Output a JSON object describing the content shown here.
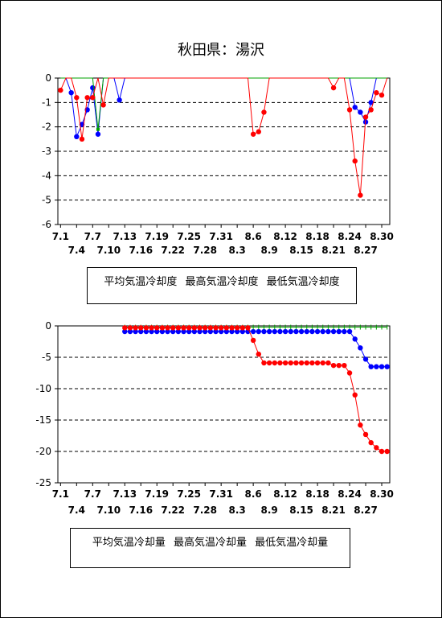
{
  "title": "秋田県：湯沢",
  "colors": {
    "mean": "#0000ff",
    "max": "#00a000",
    "min": "#ff0000"
  },
  "chart_data": [
    {
      "type": "line",
      "title": "",
      "ylim": [
        -6,
        0
      ],
      "yticks": [
        "0",
        "-1",
        "-2",
        "-3",
        "-4",
        "-5",
        "-6"
      ],
      "xticks_upper": [
        "7.1",
        "7.7",
        "7.13",
        "7.19",
        "7.25",
        "7.31",
        "8.6",
        "8.12",
        "8.18",
        "8.24",
        "8.30"
      ],
      "xticks_lower": [
        "7.4",
        "7.10",
        "7.16",
        "7.22",
        "7.28",
        "8.3",
        "8.9",
        "8.15",
        "8.21",
        "8.27"
      ],
      "grid": "dashed-horizontal",
      "legend": [
        "平均気温冷却度",
        "最高気温冷却度",
        "最低気温冷却度"
      ],
      "series": [
        {
          "name": "平均気温冷却度",
          "color": "#0000ff",
          "values": [
            0,
            0,
            -0.6,
            -2.4,
            -1.9,
            -1.3,
            -0.4,
            -2.3,
            0,
            0,
            0,
            -0.9,
            0,
            0,
            0,
            0,
            0,
            0,
            0,
            0,
            0,
            0,
            0,
            0,
            0,
            0,
            0,
            0,
            0,
            0,
            0,
            0,
            0,
            0,
            0,
            0,
            0,
            0,
            0,
            0,
            0,
            0,
            0,
            0,
            0,
            0,
            0,
            0,
            0,
            0,
            0,
            0,
            0,
            0,
            0,
            -1.2,
            -1.4,
            -1.8,
            -1.0,
            0,
            0,
            0
          ]
        },
        {
          "name": "最高気温冷却度",
          "color": "#00a000",
          "values": [
            0,
            0,
            0,
            0,
            0,
            0,
            0,
            -2.1,
            0,
            0,
            0,
            0,
            0,
            0,
            0,
            0,
            0,
            0,
            0,
            0,
            0,
            0,
            0,
            0,
            0,
            0,
            0,
            0,
            0,
            0,
            0,
            0,
            0,
            0,
            0,
            0,
            0,
            0,
            0,
            0,
            0,
            0,
            0,
            0,
            0,
            0,
            0,
            0,
            0,
            0,
            0,
            0,
            0,
            0,
            0,
            0,
            0,
            0,
            0,
            0,
            0,
            0
          ]
        },
        {
          "name": "最低気温冷却度",
          "color": "#ff0000",
          "values": [
            -0.5,
            0,
            0,
            -0.8,
            -2.5,
            -0.8,
            -0.8,
            0,
            -1.1,
            0,
            0,
            0,
            0,
            0,
            0,
            0,
            0,
            0,
            0,
            0,
            0,
            0,
            0,
            0,
            0,
            0,
            0,
            0,
            0,
            0,
            0,
            0,
            0,
            0,
            0,
            0,
            -2.3,
            -2.2,
            -1.4,
            0,
            0,
            0,
            0,
            0,
            0,
            0,
            0,
            0,
            0,
            0,
            0,
            -0.4,
            0,
            0,
            -1.3,
            -3.4,
            -4.8,
            -1.6,
            -1.3,
            -0.6,
            -0.7,
            0
          ]
        }
      ]
    },
    {
      "type": "line",
      "title": "",
      "ylim": [
        -25,
        0
      ],
      "yticks": [
        "0",
        "-5",
        "-10",
        "-15",
        "-20",
        "-25"
      ],
      "xticks_upper": [
        "7.1",
        "7.7",
        "7.13",
        "7.19",
        "7.25",
        "7.31",
        "8.6",
        "8.12",
        "8.18",
        "8.24",
        "8.30"
      ],
      "xticks_lower": [
        "7.4",
        "7.10",
        "7.16",
        "7.22",
        "7.28",
        "8.3",
        "8.9",
        "8.15",
        "8.21",
        "8.27"
      ],
      "grid": "dashed-horizontal",
      "legend": [
        "平均気温冷却量",
        "最高気温冷却量",
        "最低気温冷却量"
      ],
      "series": [
        {
          "name": "平均気温冷却量",
          "color": "#0000ff",
          "start_index": 12,
          "values": [
            -0.9,
            -0.9,
            -0.9,
            -0.9,
            -0.9,
            -0.9,
            -0.9,
            -0.9,
            -0.9,
            -0.9,
            -0.9,
            -0.9,
            -0.9,
            -0.9,
            -0.9,
            -0.9,
            -0.9,
            -0.9,
            -0.9,
            -0.9,
            -0.9,
            -0.9,
            -0.9,
            -0.9,
            -0.9,
            -0.9,
            -0.9,
            -0.9,
            -0.9,
            -0.9,
            -0.9,
            -0.9,
            -0.9,
            -0.9,
            -0.9,
            -0.9,
            -0.9,
            -0.9,
            -0.9,
            -0.9,
            -0.9,
            -0.9,
            -0.9,
            -2.1,
            -3.5,
            -5.3,
            -6.5,
            -6.5,
            -6.5,
            -6.5
          ]
        },
        {
          "name": "最高気温冷却量",
          "color": "#00a000",
          "start_index": 12,
          "values": [
            -0.2,
            -0.2,
            -0.2,
            -0.2,
            -0.2,
            -0.2,
            -0.2,
            -0.2,
            -0.2,
            -0.2,
            -0.2,
            -0.2,
            -0.2,
            -0.2,
            -0.2,
            -0.2,
            -0.2,
            -0.2,
            -0.2,
            -0.2,
            -0.2,
            -0.2,
            -0.2,
            -0.2,
            -0.2,
            -0.2,
            -0.2,
            -0.2,
            -0.2,
            -0.2,
            -0.2,
            -0.2,
            -0.2,
            -0.2,
            -0.2,
            -0.2,
            -0.2,
            -0.2,
            -0.2,
            -0.2,
            -0.2,
            -0.2,
            -0.2,
            -0.2,
            -0.2,
            -0.2,
            -0.2,
            -0.2,
            -0.2,
            -0.2
          ]
        },
        {
          "name": "最低気温冷却量",
          "color": "#ff0000",
          "start_index": 12,
          "values": [
            -0.3,
            -0.3,
            -0.3,
            -0.3,
            -0.3,
            -0.3,
            -0.3,
            -0.3,
            -0.3,
            -0.3,
            -0.3,
            -0.3,
            -0.3,
            -0.3,
            -0.3,
            -0.3,
            -0.3,
            -0.3,
            -0.3,
            -0.3,
            -0.3,
            -0.3,
            -0.3,
            -0.3,
            -2.3,
            -4.5,
            -5.9,
            -5.9,
            -5.9,
            -5.9,
            -5.9,
            -5.9,
            -5.9,
            -5.9,
            -5.9,
            -5.9,
            -5.9,
            -5.9,
            -5.9,
            -6.3,
            -6.3,
            -6.3,
            -7.5,
            -11.0,
            -15.8,
            -17.3,
            -18.6,
            -19.4,
            -20.0,
            -20.0
          ]
        }
      ]
    }
  ]
}
